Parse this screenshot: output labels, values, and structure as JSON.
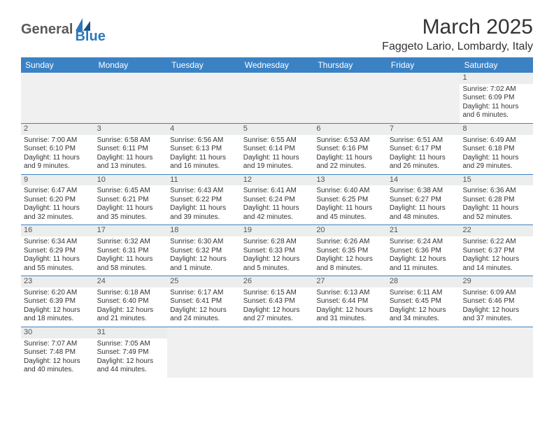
{
  "logo": {
    "text_general": "General",
    "text_blue": "Blue",
    "color_general": "#5a5a5a",
    "color_blue": "#2f77b8",
    "icon_color1": "#2f77b8",
    "icon_color2": "#1a4e7e"
  },
  "title": "March 2025",
  "location": "Faggeto Lario, Lombardy, Italy",
  "colors": {
    "header_bg": "#3b82c4",
    "header_text": "#ffffff",
    "daynum_bg": "#eceded",
    "blank_bg": "#f0f0f0",
    "week_border": "#3b82c4",
    "text": "#333333"
  },
  "weekdays": [
    "Sunday",
    "Monday",
    "Tuesday",
    "Wednesday",
    "Thursday",
    "Friday",
    "Saturday"
  ],
  "weeks": [
    [
      null,
      null,
      null,
      null,
      null,
      null,
      {
        "n": "1",
        "sunrise": "7:02 AM",
        "sunset": "6:09 PM",
        "daylight": "11 hours and 6 minutes."
      }
    ],
    [
      {
        "n": "2",
        "sunrise": "7:00 AM",
        "sunset": "6:10 PM",
        "daylight": "11 hours and 9 minutes."
      },
      {
        "n": "3",
        "sunrise": "6:58 AM",
        "sunset": "6:11 PM",
        "daylight": "11 hours and 13 minutes."
      },
      {
        "n": "4",
        "sunrise": "6:56 AM",
        "sunset": "6:13 PM",
        "daylight": "11 hours and 16 minutes."
      },
      {
        "n": "5",
        "sunrise": "6:55 AM",
        "sunset": "6:14 PM",
        "daylight": "11 hours and 19 minutes."
      },
      {
        "n": "6",
        "sunrise": "6:53 AM",
        "sunset": "6:16 PM",
        "daylight": "11 hours and 22 minutes."
      },
      {
        "n": "7",
        "sunrise": "6:51 AM",
        "sunset": "6:17 PM",
        "daylight": "11 hours and 26 minutes."
      },
      {
        "n": "8",
        "sunrise": "6:49 AM",
        "sunset": "6:18 PM",
        "daylight": "11 hours and 29 minutes."
      }
    ],
    [
      {
        "n": "9",
        "sunrise": "6:47 AM",
        "sunset": "6:20 PM",
        "daylight": "11 hours and 32 minutes."
      },
      {
        "n": "10",
        "sunrise": "6:45 AM",
        "sunset": "6:21 PM",
        "daylight": "11 hours and 35 minutes."
      },
      {
        "n": "11",
        "sunrise": "6:43 AM",
        "sunset": "6:22 PM",
        "daylight": "11 hours and 39 minutes."
      },
      {
        "n": "12",
        "sunrise": "6:41 AM",
        "sunset": "6:24 PM",
        "daylight": "11 hours and 42 minutes."
      },
      {
        "n": "13",
        "sunrise": "6:40 AM",
        "sunset": "6:25 PM",
        "daylight": "11 hours and 45 minutes."
      },
      {
        "n": "14",
        "sunrise": "6:38 AM",
        "sunset": "6:27 PM",
        "daylight": "11 hours and 48 minutes."
      },
      {
        "n": "15",
        "sunrise": "6:36 AM",
        "sunset": "6:28 PM",
        "daylight": "11 hours and 52 minutes."
      }
    ],
    [
      {
        "n": "16",
        "sunrise": "6:34 AM",
        "sunset": "6:29 PM",
        "daylight": "11 hours and 55 minutes."
      },
      {
        "n": "17",
        "sunrise": "6:32 AM",
        "sunset": "6:31 PM",
        "daylight": "11 hours and 58 minutes."
      },
      {
        "n": "18",
        "sunrise": "6:30 AM",
        "sunset": "6:32 PM",
        "daylight": "12 hours and 1 minute."
      },
      {
        "n": "19",
        "sunrise": "6:28 AM",
        "sunset": "6:33 PM",
        "daylight": "12 hours and 5 minutes."
      },
      {
        "n": "20",
        "sunrise": "6:26 AM",
        "sunset": "6:35 PM",
        "daylight": "12 hours and 8 minutes."
      },
      {
        "n": "21",
        "sunrise": "6:24 AM",
        "sunset": "6:36 PM",
        "daylight": "12 hours and 11 minutes."
      },
      {
        "n": "22",
        "sunrise": "6:22 AM",
        "sunset": "6:37 PM",
        "daylight": "12 hours and 14 minutes."
      }
    ],
    [
      {
        "n": "23",
        "sunrise": "6:20 AM",
        "sunset": "6:39 PM",
        "daylight": "12 hours and 18 minutes."
      },
      {
        "n": "24",
        "sunrise": "6:18 AM",
        "sunset": "6:40 PM",
        "daylight": "12 hours and 21 minutes."
      },
      {
        "n": "25",
        "sunrise": "6:17 AM",
        "sunset": "6:41 PM",
        "daylight": "12 hours and 24 minutes."
      },
      {
        "n": "26",
        "sunrise": "6:15 AM",
        "sunset": "6:43 PM",
        "daylight": "12 hours and 27 minutes."
      },
      {
        "n": "27",
        "sunrise": "6:13 AM",
        "sunset": "6:44 PM",
        "daylight": "12 hours and 31 minutes."
      },
      {
        "n": "28",
        "sunrise": "6:11 AM",
        "sunset": "6:45 PM",
        "daylight": "12 hours and 34 minutes."
      },
      {
        "n": "29",
        "sunrise": "6:09 AM",
        "sunset": "6:46 PM",
        "daylight": "12 hours and 37 minutes."
      }
    ],
    [
      {
        "n": "30",
        "sunrise": "7:07 AM",
        "sunset": "7:48 PM",
        "daylight": "12 hours and 40 minutes."
      },
      {
        "n": "31",
        "sunrise": "7:05 AM",
        "sunset": "7:49 PM",
        "daylight": "12 hours and 44 minutes."
      },
      null,
      null,
      null,
      null,
      null
    ]
  ]
}
